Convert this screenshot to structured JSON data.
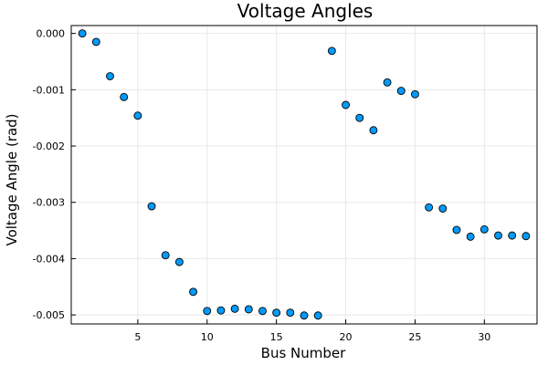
{
  "chart_data": {
    "type": "scatter",
    "title": "Voltage Angles",
    "xlabel": "Bus Number",
    "ylabel": "Voltage Angle (rad)",
    "xlim": [
      0.2,
      33.8
    ],
    "ylim": [
      -0.00516,
      0.00014
    ],
    "grid": true,
    "legend": "none",
    "marker_color": "#009AFA",
    "marker_edge_color": "#000000",
    "x_ticks": [
      5,
      10,
      15,
      20,
      25,
      30
    ],
    "x_tick_labels": [
      "5",
      "10",
      "15",
      "20",
      "25",
      "30"
    ],
    "y_ticks": [
      0,
      -0.001,
      -0.002,
      -0.003,
      -0.004,
      -0.005
    ],
    "y_tick_labels": [
      "0.000",
      "-0.001",
      "-0.002",
      "-0.003",
      "-0.004",
      "-0.005"
    ],
    "series": [
      {
        "points": [
          {
            "x": 1,
            "y": 0.0
          },
          {
            "x": 2,
            "y": -0.00015
          },
          {
            "x": 3,
            "y": -0.00076
          },
          {
            "x": 4,
            "y": -0.00113
          },
          {
            "x": 5,
            "y": -0.00146
          },
          {
            "x": 6,
            "y": -0.00307
          },
          {
            "x": 7,
            "y": -0.00394
          },
          {
            "x": 8,
            "y": -0.00406
          },
          {
            "x": 9,
            "y": -0.00459
          },
          {
            "x": 10,
            "y": -0.00493
          },
          {
            "x": 11,
            "y": -0.00492
          },
          {
            "x": 12,
            "y": -0.00489
          },
          {
            "x": 13,
            "y": -0.0049
          },
          {
            "x": 14,
            "y": -0.00493
          },
          {
            "x": 15,
            "y": -0.00496
          },
          {
            "x": 16,
            "y": -0.00496
          },
          {
            "x": 17,
            "y": -0.00501
          },
          {
            "x": 18,
            "y": -0.00501
          },
          {
            "x": 19,
            "y": -0.00031
          },
          {
            "x": 20,
            "y": -0.00127
          },
          {
            "x": 21,
            "y": -0.0015
          },
          {
            "x": 22,
            "y": -0.00172
          },
          {
            "x": 23,
            "y": -0.00087
          },
          {
            "x": 24,
            "y": -0.00102
          },
          {
            "x": 25,
            "y": -0.00108
          },
          {
            "x": 26,
            "y": -0.00309
          },
          {
            "x": 27,
            "y": -0.00311
          },
          {
            "x": 28,
            "y": -0.00349
          },
          {
            "x": 29,
            "y": -0.00361
          },
          {
            "x": 30,
            "y": -0.00348
          },
          {
            "x": 31,
            "y": -0.00359
          },
          {
            "x": 32,
            "y": -0.00359
          },
          {
            "x": 33,
            "y": -0.0036
          }
        ]
      }
    ]
  }
}
